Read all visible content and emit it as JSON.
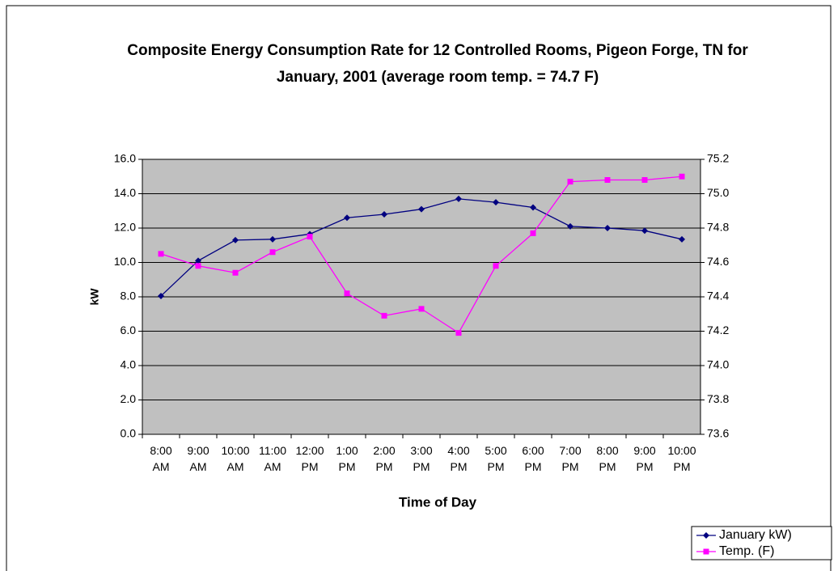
{
  "chart_data": {
    "type": "line",
    "title": "Composite Energy Consumption Rate for 12 Controlled Rooms, Pigeon Forge, TN for January, 2001 (average room temp. = 74.7 F)",
    "x_label": "Time of Day",
    "y_label": "kW",
    "categories": [
      "8:00 AM",
      "9:00 AM",
      "10:00 AM",
      "11:00 AM",
      "12:00 PM",
      "1:00 PM",
      "2:00 PM",
      "3:00 PM",
      "4:00 PM",
      "5:00 PM",
      "6:00 PM",
      "7:00 PM",
      "8:00 PM",
      "9:00 PM",
      "10:00 PM"
    ],
    "series": [
      {
        "name": "January kW)",
        "color": "#000080",
        "marker": "diamond",
        "values": [
          8.05,
          10.1,
          11.3,
          11.35,
          11.65,
          12.6,
          12.8,
          13.1,
          13.7,
          13.5,
          13.2,
          12.1,
          12.0,
          11.85,
          11.35
        ]
      },
      {
        "name": "Temp. (F)",
        "color": "#ff00ff",
        "marker": "square",
        "axis": "y2",
        "values": [
          74.65,
          74.58,
          74.54,
          74.66,
          74.75,
          74.42,
          74.29,
          74.33,
          74.19,
          74.58,
          74.77,
          75.07,
          75.08,
          75.08,
          75.1
        ]
      }
    ],
    "ylim": [
      0,
      16
    ],
    "yticks": [
      {
        "value": 0,
        "label": "0.0"
      },
      {
        "value": 2,
        "label": "2.0"
      },
      {
        "value": 4,
        "label": "4.0"
      },
      {
        "value": 6,
        "label": "6.0"
      },
      {
        "value": 8,
        "label": "8.0"
      },
      {
        "value": 10,
        "label": "10.0"
      },
      {
        "value": 12,
        "label": "12.0"
      },
      {
        "value": 14,
        "label": "14.0"
      },
      {
        "value": 16,
        "label": "16.0"
      }
    ],
    "y2lim": [
      73.6,
      75.2
    ],
    "y2ticks": [
      73.6,
      73.8,
      {
        "value": 74,
        "label": "74.0"
      },
      74.2,
      74.4,
      74.6,
      74.8,
      {
        "value": 75,
        "label": "75.0"
      },
      75.2
    ],
    "grid": true,
    "plot_background": "#c0c0c0",
    "legend": "bottom-right"
  }
}
